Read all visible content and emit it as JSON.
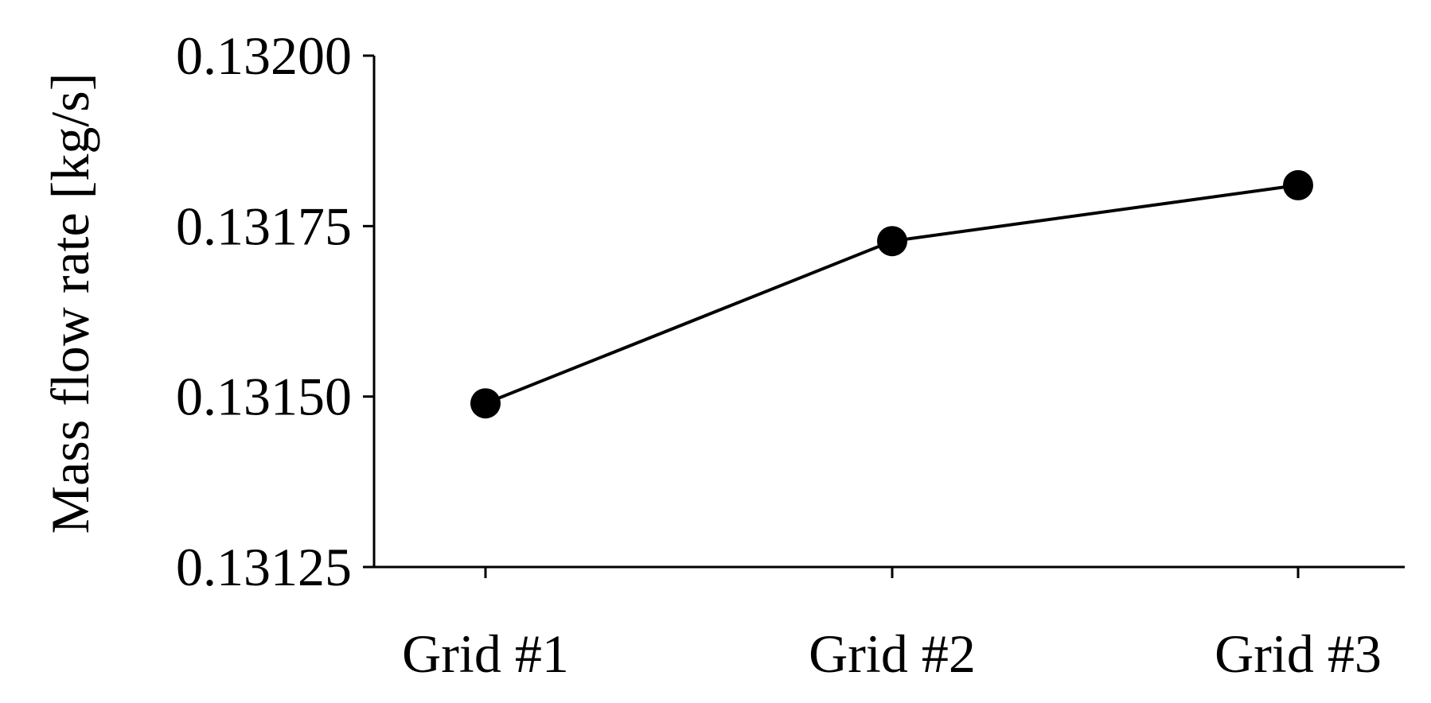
{
  "chart_data": {
    "type": "line",
    "categories": [
      "Grid #1",
      "Grid #2",
      "Grid #3"
    ],
    "values": [
      0.13149,
      0.131728,
      0.13181
    ],
    "title": "",
    "xlabel": "",
    "ylabel": "Mass flow rate [kg/s]",
    "ylim": [
      0.13125,
      0.132
    ],
    "yticks": [
      0.13125,
      0.1315,
      0.13175,
      0.132
    ],
    "ytick_labels": [
      "0.13125",
      "0.13150",
      "0.13175",
      "0.13200"
    ],
    "grid": false,
    "legend": "none",
    "marker": "filled-circle",
    "line_color": "#000000",
    "marker_color": "#000000"
  }
}
